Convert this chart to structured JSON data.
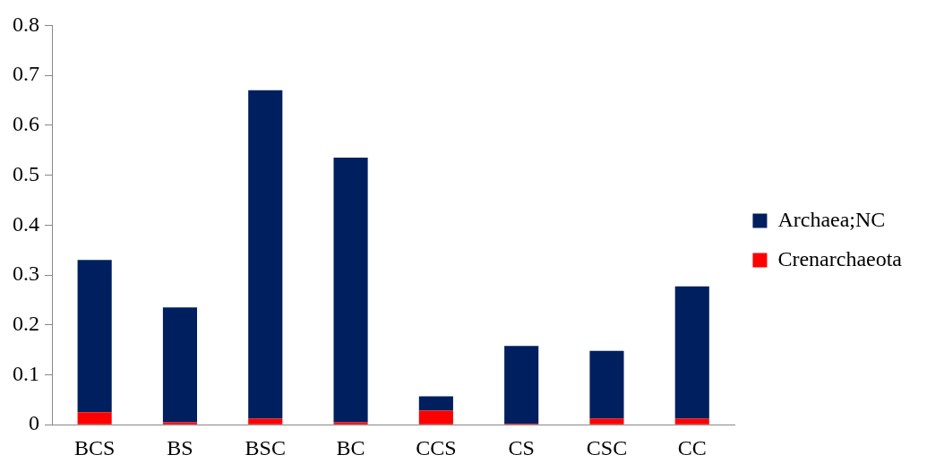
{
  "chart_data": {
    "type": "bar",
    "stacked": true,
    "categories": [
      "BCS",
      "BS",
      "BSC",
      "BC",
      "CCS",
      "CS",
      "CSC",
      "CC"
    ],
    "series": [
      {
        "name": "Crenarchaeota",
        "color": "#ff0000",
        "values": [
          0.025,
          0.005,
          0.012,
          0.005,
          0.028,
          0.002,
          0.012,
          0.012
        ]
      },
      {
        "name": "Archaea;NC",
        "color": "#001f5f",
        "values": [
          0.305,
          0.23,
          0.658,
          0.53,
          0.029,
          0.156,
          0.136,
          0.265
        ]
      }
    ],
    "ylim": [
      0,
      0.8
    ],
    "yticks": [
      0,
      0.1,
      0.2,
      0.3,
      0.4,
      0.5,
      0.6,
      0.7,
      0.8
    ],
    "grid": false,
    "legend": "right"
  }
}
